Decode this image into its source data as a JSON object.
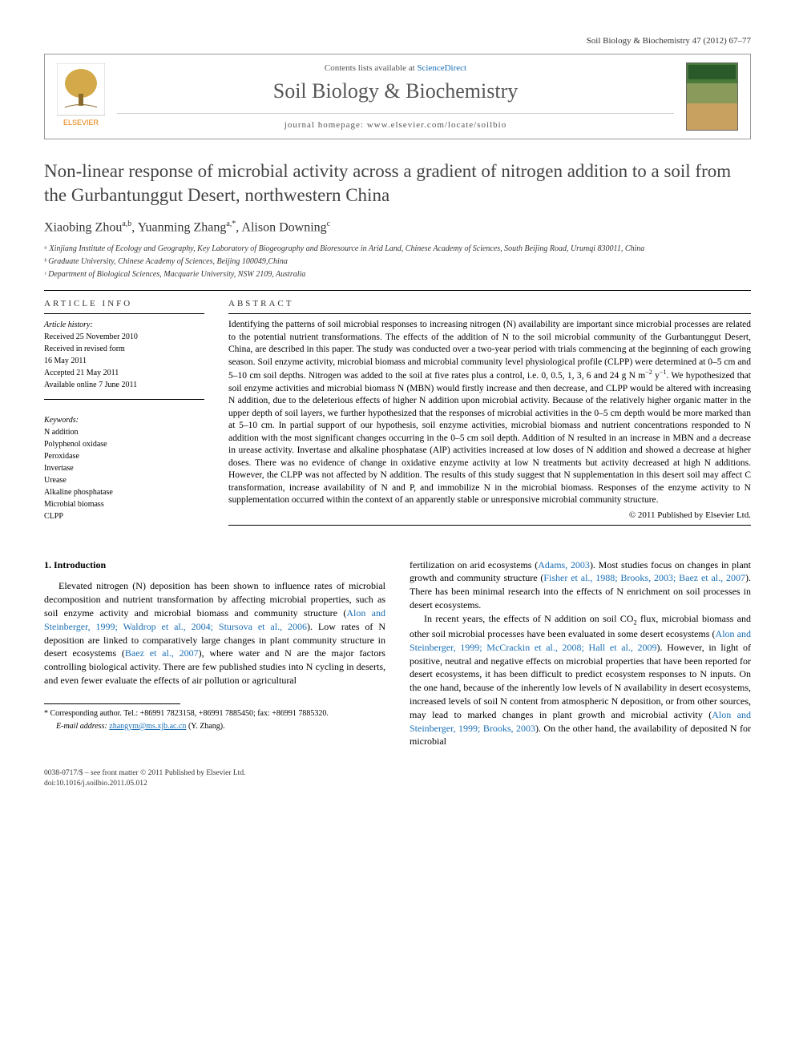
{
  "running_head": "Soil Biology & Biochemistry 47 (2012) 67–77",
  "journal_box": {
    "contents_prefix": "Contents lists available at ",
    "contents_link": "ScienceDirect",
    "journal_name": "Soil Biology & Biochemistry",
    "homepage_prefix": "journal homepage: ",
    "homepage_url": "www.elsevier.com/locate/soilbio",
    "publisher": "ELSEVIER"
  },
  "title": "Non-linear response of microbial activity across a gradient of nitrogen addition to a soil from the Gurbantunggut Desert, northwestern China",
  "authors_html": "Xiaobing Zhou<sup>a,b</sup>, Yuanming Zhang<sup>a,*</sup>, Alison Downing<sup>c</sup>",
  "affiliations": [
    "ᵃ Xinjiang Institute of Ecology and Geography, Key Laboratory of Biogeography and Bioresource in Arid Land, Chinese Academy of Sciences, South Beijing Road, Urumqi 830011, China",
    "ᵇ Graduate University, Chinese Academy of Sciences, Beijing 100049,China",
    "ᶜ Department of Biological Sciences, Macquarie University, NSW 2109, Australia"
  ],
  "article_info": {
    "heading": "ARTICLE INFO",
    "history_label": "Article history:",
    "history": [
      "Received 25 November 2010",
      "Received in revised form",
      "16 May 2011",
      "Accepted 21 May 2011",
      "Available online 7 June 2011"
    ],
    "keywords_label": "Keywords:",
    "keywords": [
      "N addition",
      "Polyphenol oxidase",
      "Peroxidase",
      "Invertase",
      "Urease",
      "Alkaline phosphatase",
      "Microbial biomass",
      "CLPP"
    ]
  },
  "abstract": {
    "heading": "ABSTRACT",
    "body_html": "Identifying the patterns of soil microbial responses to increasing nitrogen (N) availability are important since microbial processes are related to the potential nutrient transformations. The effects of the addition of N to the soil microbial community of the Gurbantunggut Desert, China, are described in this paper. The study was conducted over a two-year period with trials commencing at the beginning of each growing season. Soil enzyme activity, microbial biomass and microbial community level physiological profile (CLPP) were determined at 0–5 cm and 5–10 cm soil depths. Nitrogen was added to the soil at five rates plus a control, i.e. 0, 0.5, 1, 3, 6 and 24 g N m<sup>−2</sup> y<sup>−1</sup>. We hypothesized that soil enzyme activities and microbial biomass N (MBN) would firstly increase and then decrease, and CLPP would be altered with increasing N addition, due to the deleterious effects of higher N addition upon microbial activity. Because of the relatively higher organic matter in the upper depth of soil layers, we further hypothesized that the responses of microbial activities in the 0–5 cm depth would be more marked than at 5–10 cm. In partial support of our hypothesis, soil enzyme activities, microbial biomass and nutrient concentrations responded to N addition with the most significant changes occurring in the 0–5 cm soil depth. Addition of N resulted in an increase in MBN and a decrease in urease activity. Invertase and alkaline phosphatase (AlP) activities increased at low doses of N addition and showed a decrease at higher doses. There was no evidence of change in oxidative enzyme activity at low N treatments but activity decreased at high N additions. However, the CLPP was not affected by N addition. The results of this study suggest that N supplementation in this desert soil may affect C transformation, increase availability of N and P, and immobilize N in the microbial biomass. Responses of the enzyme activity to N supplementation occurred within the context of an apparently stable or unresponsive microbial community structure.",
    "copyright": "© 2011 Published by Elsevier Ltd."
  },
  "section1": {
    "heading": "1. Introduction",
    "p1_html": "Elevated nitrogen (N) deposition has been shown to influence rates of microbial decomposition and nutrient transformation by affecting microbial properties, such as soil enzyme activity and microbial biomass and community structure (<span class=\"ref-link\">Alon and Steinberger, 1999; Waldrop et al., 2004; Stursova et al., 2006</span>). Low rates of N deposition are linked to comparatively large changes in plant community structure in desert ecosystems (<span class=\"ref-link\">Baez et al., 2007</span>), where water and N are the major factors controlling biological activity. There are few published studies into N cycling in deserts, and even fewer evaluate the effects of air pollution or agricultural",
    "p2_html": "fertilization on arid ecosystems (<span class=\"ref-link\">Adams, 2003</span>). Most studies focus on changes in plant growth and community structure (<span class=\"ref-link\">Fisher et al., 1988; Brooks, 2003; Baez et al., 2007</span>). There has been minimal research into the effects of N enrichment on soil processes in desert ecosystems.",
    "p3_html": "In recent years, the effects of N addition on soil CO<sub>2</sub> flux, microbial biomass and other soil microbial processes have been evaluated in some desert ecosystems (<span class=\"ref-link\">Alon and Steinberger, 1999; McCrackin et al., 2008; Hall et al., 2009</span>). However, in light of positive, neutral and negative effects on microbial properties that have been reported for desert ecosystems, it has been difficult to predict ecosystem responses to N inputs. On the one hand, because of the inherently low levels of N availability in desert ecosystems, increased levels of soil N content from atmospheric N deposition, or from other sources, may lead to marked changes in plant growth and microbial activity (<span class=\"ref-link\">Alon and Steinberger, 1999; Brooks, 2003</span>). On the other hand, the availability of deposited N for microbial"
  },
  "footnotes": {
    "corr_label": "* Corresponding author. ",
    "corr_text": "Tel.: +86991 7823158, +86991 7885450; fax: +86991 7885320.",
    "email_label": "E-mail address: ",
    "email": "zhangym@ms.xjb.ac.cn",
    "email_suffix": " (Y. Zhang)."
  },
  "footer": {
    "line1": "0038-0717/$ – see front matter © 2011 Published by Elsevier Ltd.",
    "line2": "doi:10.1016/j.soilbio.2011.05.012"
  },
  "colors": {
    "link": "#1a6fb5",
    "text": "#000000",
    "heading_gray": "#444444"
  }
}
